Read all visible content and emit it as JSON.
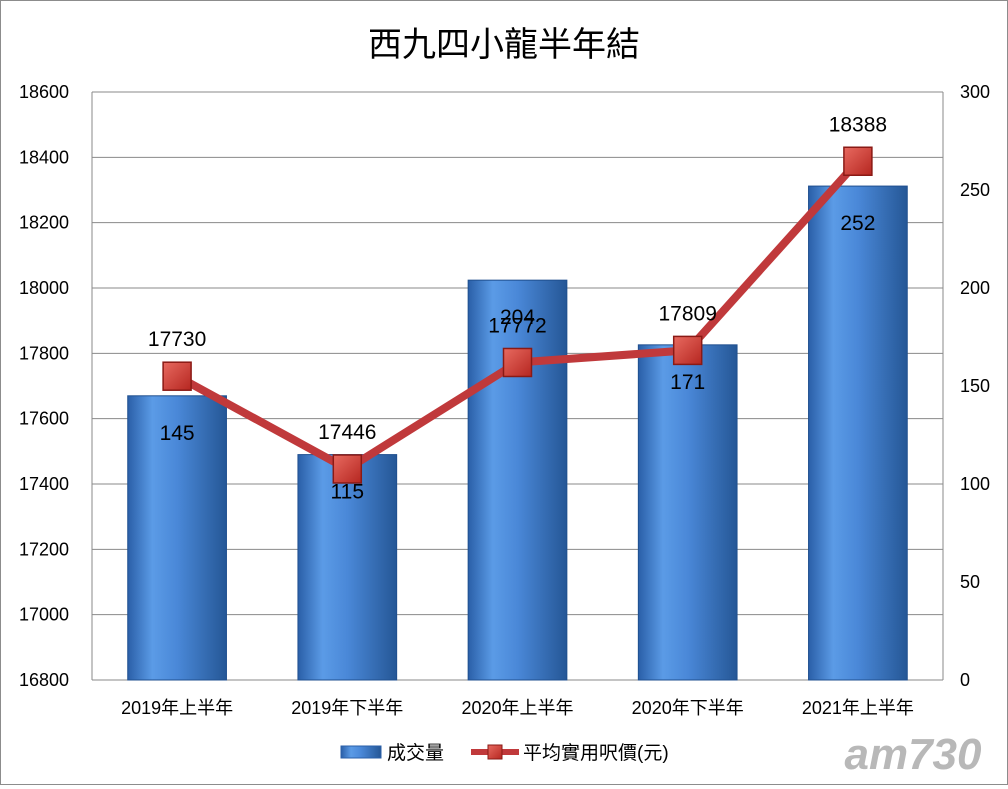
{
  "chart_data": {
    "type": "bar+line",
    "title": "西九四小龍半年結",
    "categories": [
      "2019年上半年",
      "2019年下半年",
      "2020年上半年",
      "2020年下半年",
      "2021年上半年"
    ],
    "bar_series": {
      "name": "成交量",
      "values": [
        145,
        115,
        204,
        171,
        252
      ],
      "labels": [
        "145",
        "115",
        "204",
        "171",
        "252"
      ],
      "axis": "right",
      "color": "#3f7fd0"
    },
    "line_series": {
      "name": "平均實用呎價(元)",
      "values": [
        17730,
        17446,
        17772,
        17809,
        18388
      ],
      "labels": [
        "17730",
        "17446",
        "17772",
        "17809",
        "18388"
      ],
      "axis": "left",
      "color": "#c0393b",
      "marker_color": "#d23a33"
    },
    "left_axis": {
      "min": 16800,
      "max": 18600,
      "step": 200,
      "ticks": [
        "16800",
        "17000",
        "17200",
        "17400",
        "17600",
        "17800",
        "18000",
        "18200",
        "18400",
        "18600"
      ]
    },
    "right_axis": {
      "min": 0,
      "max": 300,
      "step": 50,
      "ticks": [
        "0",
        "50",
        "100",
        "150",
        "200",
        "250",
        "300"
      ]
    },
    "grid": true,
    "legend_position": "bottom"
  },
  "watermark": "am730"
}
